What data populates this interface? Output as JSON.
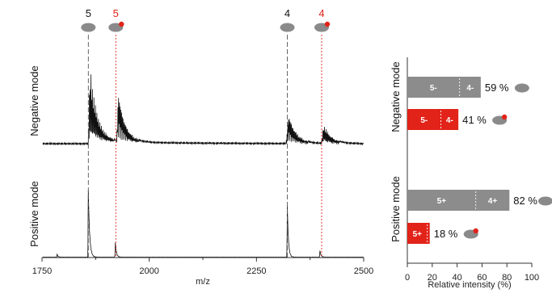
{
  "colors": {
    "black": "#111111",
    "gray": "#8c8c8c",
    "red": "#e2231a",
    "axis": "#333333",
    "ellipse": "#8a8a8a"
  },
  "chart_data": [
    {
      "type": "line",
      "xlabel": "m/z",
      "x_ticks": [
        "1750",
        "2000",
        "2250",
        "2500"
      ],
      "xlim": [
        1750,
        2500
      ],
      "panels": [
        {
          "name": "Negative mode"
        },
        {
          "name": "Positive mode"
        }
      ],
      "charge_markers": [
        {
          "label": "5",
          "mz": 1858,
          "color": "black",
          "icon": "protein-icon"
        },
        {
          "label": "5",
          "mz": 1922,
          "color": "red",
          "icon": "protein-ligand-icon"
        },
        {
          "label": "4",
          "mz": 2322,
          "color": "black",
          "icon": "protein-icon"
        },
        {
          "label": "4",
          "mz": 2402,
          "color": "red",
          "icon": "protein-ligand-icon"
        }
      ]
    },
    {
      "type": "bar",
      "orientation": "horizontal",
      "xlabel": "Relative intensity (%)",
      "xlim": [
        0,
        100
      ],
      "x_ticks": [
        "0",
        "20",
        "40",
        "60",
        "80",
        "100"
      ],
      "groups": [
        {
          "name": "Negative mode",
          "bars": [
            {
              "value": 59,
              "label": "59 %",
              "color": "gray",
              "segments": [
                {
                  "label": "5-",
                  "value": 42
                },
                {
                  "label": "4-",
                  "value": 17
                }
              ]
            },
            {
              "value": 41,
              "label": "41 %",
              "color": "red",
              "segments": [
                {
                  "label": "5-",
                  "value": 27
                },
                {
                  "label": "4-",
                  "value": 14
                }
              ]
            }
          ]
        },
        {
          "name": "Positive mode",
          "bars": [
            {
              "value": 82,
              "label": "82 %",
              "color": "gray",
              "segments": [
                {
                  "label": "5+",
                  "value": 55
                },
                {
                  "label": "4+",
                  "value": 27
                }
              ]
            },
            {
              "value": 18,
              "label": "18 %",
              "color": "red",
              "segments": [
                {
                  "label": "5+",
                  "value": 16
                },
                {
                  "label": "",
                  "value": 2
                }
              ]
            }
          ]
        }
      ]
    }
  ]
}
